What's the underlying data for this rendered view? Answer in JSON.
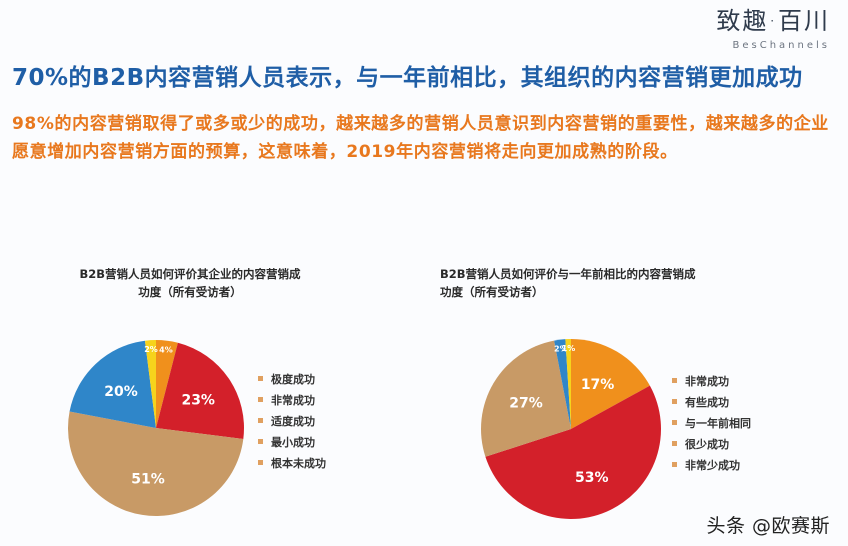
{
  "logo": {
    "cn": "致趣·百川",
    "en": "BesChannels"
  },
  "headline": "70%的B2B内容营销人员表示，与一年前相比，其组织的内容营销更加成功",
  "subtext": "98%的内容营销取得了或多或少的成功，越来越多的营销人员意识到内容营销的重要性，越来越多的企业愿意增加内容营销方面的预算，这意味着，2019年内容营销将走向更加成熟的阶段。",
  "colors": {
    "headline": "#1f5ea6",
    "subtext": "#e8781e",
    "orange": "#f0901c",
    "red": "#d3202a",
    "tan": "#c89a66",
    "blue": "#2f86c9",
    "yellow": "#f6d31c"
  },
  "watermark": "头条 @欧赛斯",
  "chart_data": [
    {
      "type": "pie",
      "title": "B2B营销人员如何评价其企业的内容营销成功度（所有受访者）",
      "title_lines": [
        "B2B营销人员如何评价其企业的内容营销成",
        "功度（所有受访者）"
      ],
      "categories": [
        "极度成功",
        "非常成功",
        "适度成功",
        "最小成功",
        "根本未成功"
      ],
      "values": [
        4,
        23,
        51,
        20,
        2
      ],
      "labels": [
        "4%",
        "23%",
        "51%",
        "20%",
        "2%"
      ],
      "colors": [
        "#f0901c",
        "#d3202a",
        "#c89a66",
        "#2f86c9",
        "#f6d31c"
      ],
      "legend_position": "right",
      "start_angle": "12 o'clock, clockwise"
    },
    {
      "type": "pie",
      "title": "B2B营销人员如何评价与一年前相比的内容营销成功度（所有受访者）",
      "title_lines": [
        "B2B营销人员如何评价与一年前相比的内容营销成",
        "功度（所有受访者）"
      ],
      "categories": [
        "非常成功",
        "有些成功",
        "与一年前相同",
        "很少成功",
        "非常少成功"
      ],
      "values": [
        17,
        53,
        27,
        2,
        1
      ],
      "labels": [
        "17%",
        "53%",
        "27%",
        "2%",
        "1%"
      ],
      "colors": [
        "#f0901c",
        "#d3202a",
        "#c89a66",
        "#2f86c9",
        "#f6d31c"
      ],
      "legend_position": "right",
      "start_angle": "12 o'clock, clockwise"
    }
  ]
}
